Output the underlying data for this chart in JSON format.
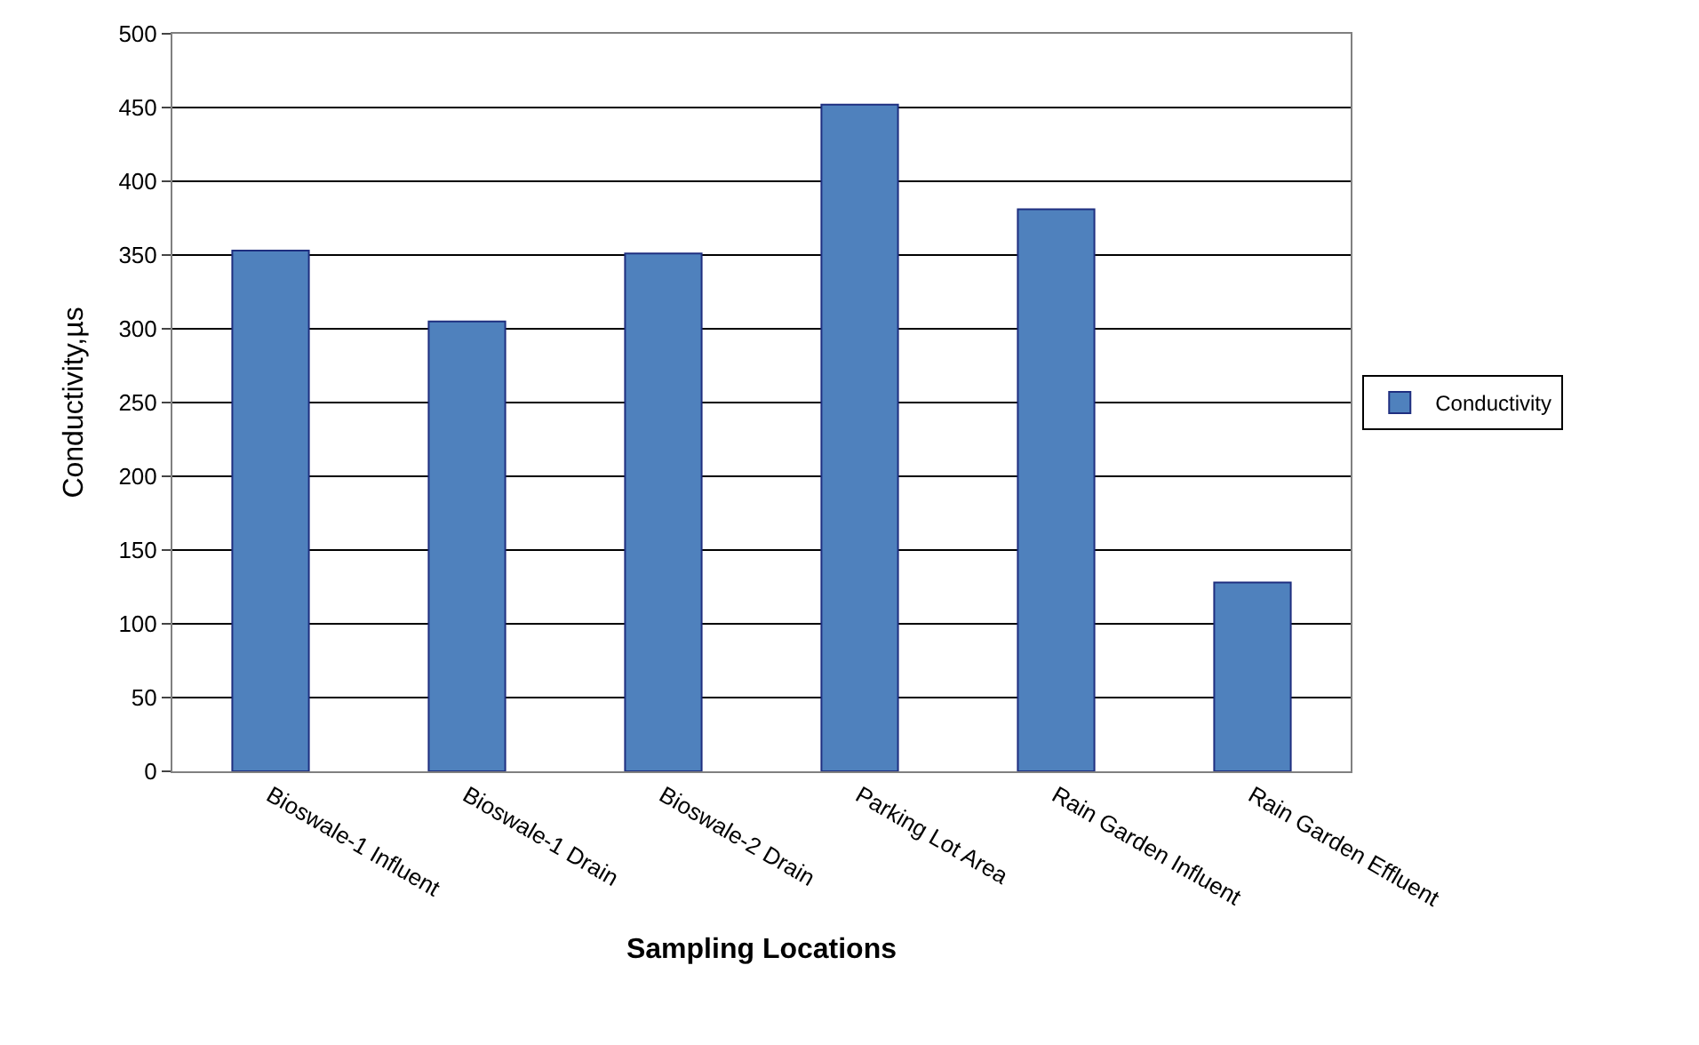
{
  "chart_data": {
    "type": "bar",
    "xlabel": "Sampling Locations",
    "ylabel": "Conductivity,µs",
    "categories": [
      "Bioswale-1 Influent",
      "Bioswale-1 Drain",
      "Bioswale-2 Drain",
      "Parking Lot Area",
      "Rain Garden Influent",
      "Rain Garden Effluent"
    ],
    "series": [
      {
        "name": "Conductivity",
        "color": "#4f81bd",
        "values": [
          353,
          305,
          351,
          452,
          381,
          128
        ]
      }
    ],
    "ylim": [
      0,
      500
    ],
    "yticks": [
      0,
      50,
      100,
      150,
      200,
      250,
      300,
      350,
      400,
      450,
      500
    ],
    "grid": "y",
    "legend": "right"
  }
}
